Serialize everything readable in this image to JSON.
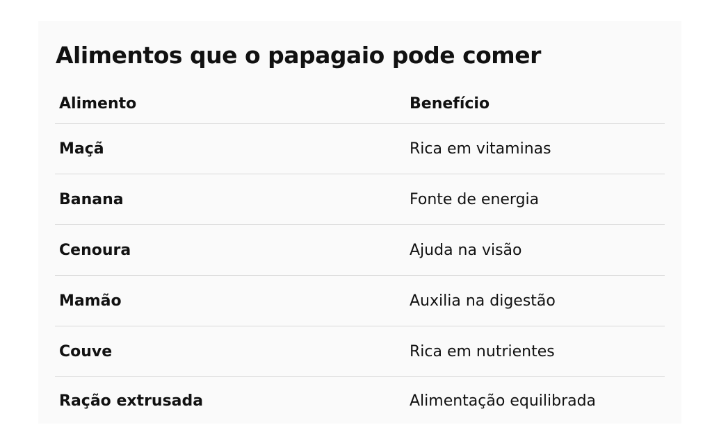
{
  "title": "Alimentos que o papagaio pode comer",
  "table": {
    "headers": [
      "Alimento",
      "Benefício"
    ],
    "rows": [
      [
        "Maçã",
        "Rica em vitaminas"
      ],
      [
        "Banana",
        "Fonte de energia"
      ],
      [
        "Cenoura",
        "Ajuda na visão"
      ],
      [
        "Mamão",
        "Auxilia na digestão"
      ],
      [
        "Couve",
        "Rica em nutrientes"
      ],
      [
        "Ração extrusada",
        "Alimentação equilibrada"
      ]
    ]
  }
}
